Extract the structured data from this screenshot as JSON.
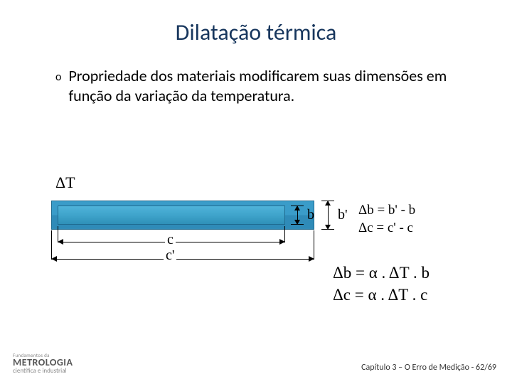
{
  "title": "Dilatação térmica",
  "bullet": {
    "marker": "o",
    "text": "Propriedade dos materiais modificarem suas dimensões em função da variação da temperatura."
  },
  "diagram": {
    "delta_t": "ΔT",
    "label_b": "b",
    "label_bp": "b'",
    "label_c": "c",
    "label_cp": "c'",
    "bar_outer_color_top": "#3a9cc9",
    "bar_outer_color_bot": "#2f8bb8",
    "bar_inner_color_top": "#4fb3da",
    "bar_inner_color_bot": "#2f90b8",
    "bar_border": "#1f6a8f",
    "outer_w": 370,
    "outer_h": 41,
    "inner_w": 320,
    "inner_h": 27
  },
  "equations": {
    "db_def": "Δb = b' - b",
    "dc_def": "Δc = c' - c",
    "db_formula": "Δb = α . ΔT . b",
    "dc_formula": "Δc = α . ΔT . c"
  },
  "footer": {
    "tiny": "Fundamentos da",
    "brand": "METROLOGIA",
    "sub": "científica e industrial",
    "right": "Capítulo 3 – O Erro de Medição - 62/69"
  },
  "colors": {
    "title": "#17365d",
    "text": "#000000",
    "bg": "#ffffff"
  },
  "fonts": {
    "title_size": 32,
    "body_size": 22,
    "eq_size": 19,
    "eq2_size": 23,
    "serif": "Times New Roman"
  }
}
